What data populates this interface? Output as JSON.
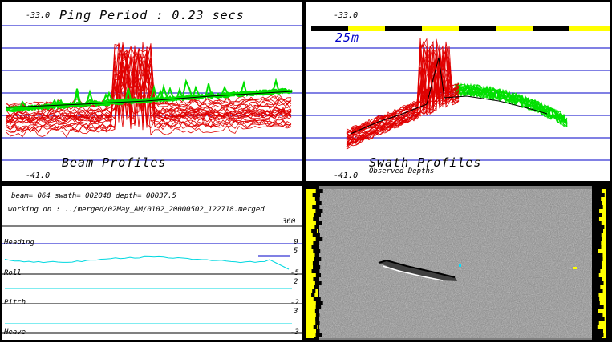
{
  "beam_panel": {
    "depth_top": "-33.0",
    "title": "Ping Period : 0.23 secs",
    "caption": "Beam Profiles",
    "depth_bottom": "-41.0"
  },
  "swath_panel": {
    "depth_top": "-33.0",
    "scale_label": "25m",
    "caption": "Swath Profiles",
    "subcaption": "Observed Depths",
    "depth_bottom": "-41.0"
  },
  "status_panel": {
    "info_line": "beam= 064 swath= 002048 depth= 00037.5",
    "working_line": "working on : ../merged/02May_AM/0102_20000502_122718.merged",
    "heading": {
      "label": "Heading",
      "max": "360",
      "min": "0"
    },
    "roll": {
      "label": "Roll",
      "max": "5",
      "min": "-5"
    },
    "pitch": {
      "label": "Pitch",
      "max": "2",
      "min": "-2"
    },
    "heave": {
      "label": "Heave",
      "max": "3",
      "min": "-3"
    }
  },
  "colors": {
    "grid": "#0000c8",
    "profile_red": "#e00000",
    "profile_green": "#00e000",
    "trace_cyan": "#00d8e0",
    "scale_yellow": "#ffff00"
  }
}
